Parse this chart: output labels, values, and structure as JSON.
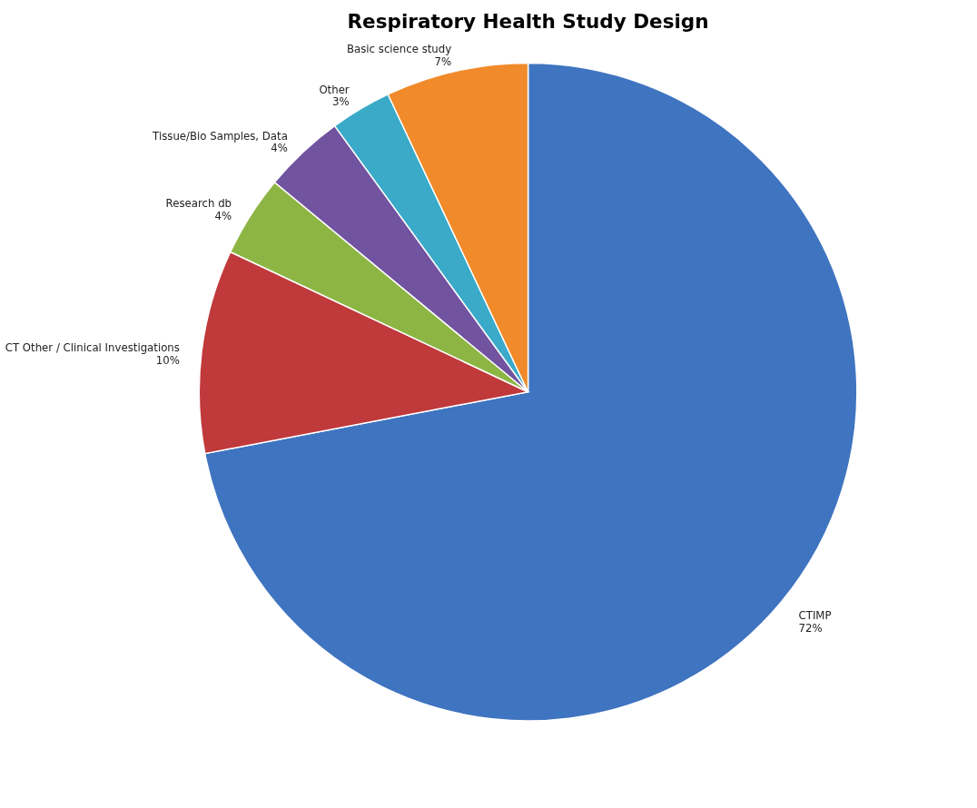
{
  "chart_data": {
    "type": "pie",
    "title": "Respiratory Health Study Design",
    "categories": [
      "CTIMP",
      "CT Other / Clinical Investigations",
      "Research db",
      "Tissue/Bio Samples, Data",
      "Other",
      "Basic science study"
    ],
    "values": [
      72,
      10,
      4,
      4,
      3,
      7
    ],
    "value_labels": [
      "72%",
      "10%",
      "4%",
      "4%",
      "3%",
      "7%"
    ],
    "colors": [
      "#3f74c0",
      "#c0393b",
      "#8db544",
      "#7153a0",
      "#3aaac8",
      "#f08a2a"
    ],
    "legend": false
  }
}
